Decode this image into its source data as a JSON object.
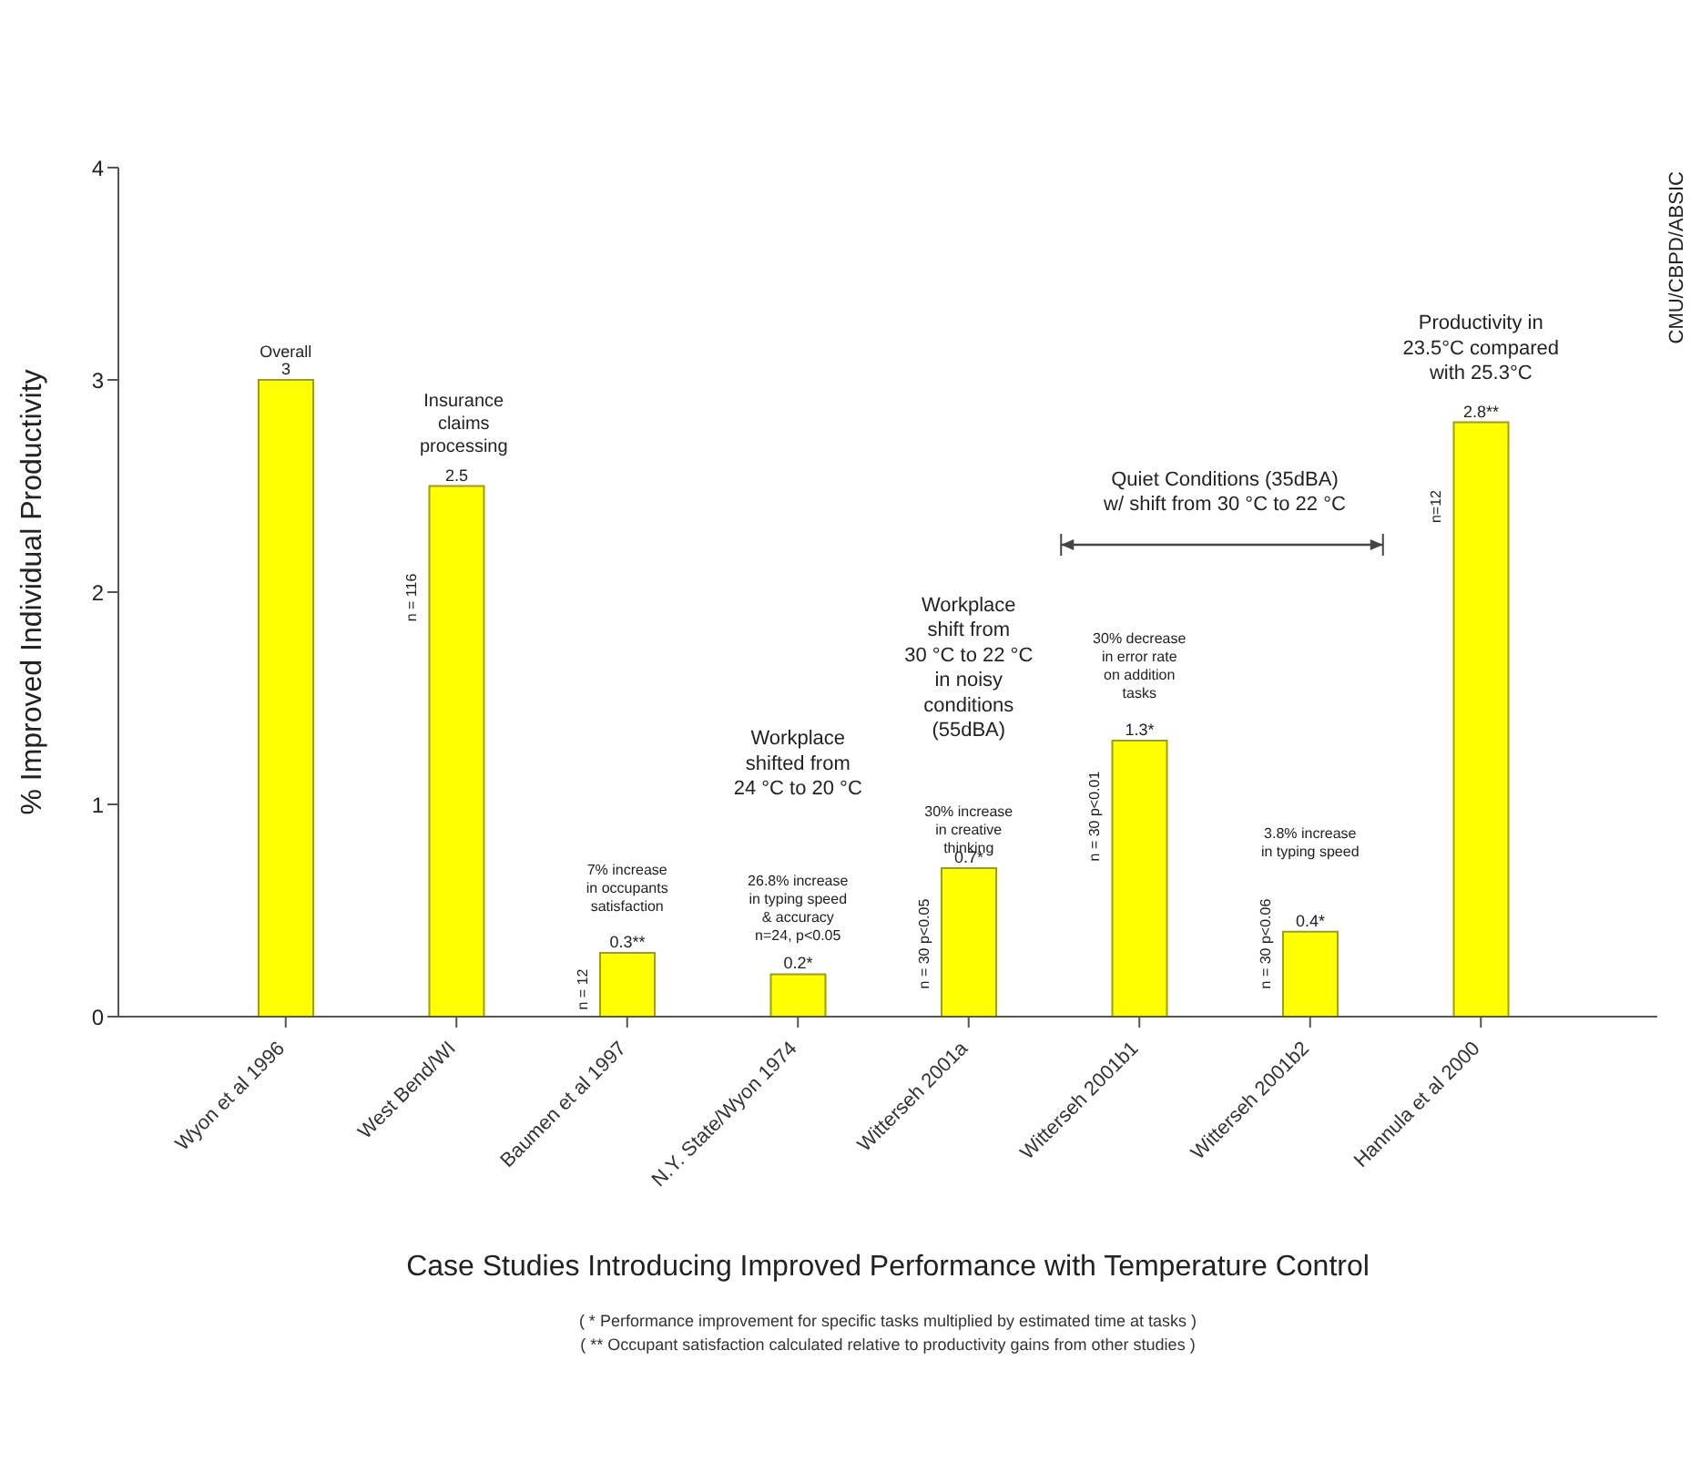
{
  "chart_data": {
    "type": "bar",
    "xlabel": "Case Studies Introducing Improved Performance with Temperature Control",
    "ylabel": "% Improved Individual Productivity",
    "categories": [
      "Wyon et al 1996",
      "West Bend/WI",
      "Baumen et al 1997",
      "N.Y. State/Wyon 1974",
      "Witterseh 2001a",
      "Witterseh 2001b1",
      "Witterseh 2001b2",
      "Hannula et al 2000"
    ],
    "values": [
      3,
      2.5,
      0.3,
      0.2,
      0.7,
      1.3,
      0.4,
      2.8
    ],
    "value_labels": [
      "3",
      "2.5",
      "0.3**",
      "0.2*",
      "0.7*",
      "1.3*",
      "0.4*",
      "2.8**"
    ],
    "color": "#ffff00",
    "ylim": [
      0,
      4
    ],
    "yticks": [
      0,
      1,
      2,
      3,
      4
    ],
    "annotations": [
      "Overall",
      "Insurance\nclaims\nprocessing",
      "n = 116",
      "7% increase\nin occupants\nsatisfaction",
      "n = 12",
      "Workplace\nshifted from\n24 °C to 20 °C",
      "26.8% increase\nin typing speed\n& accuracy\nn=24, p<0.05",
      "Workplace\nshift from\n30 °C to 22 °C\nin noisy\nconditions\n(55dBA)",
      "30% increase\nin creative\nthinking",
      "n = 30  p<0.05",
      "30% decrease\nin error rate\non addition\ntasks",
      "n = 30  p<0.01",
      "3.8% increase\nin typing speed",
      "n = 30  p<0.06",
      "Productivity in\n23.5°C compared\nwith 25.3°C",
      "n=12",
      "Quiet Conditions (35dBA)\nw/ shift from 30 °C to 22 °C",
      "CMU/CBPD/ABSIC",
      "( * Performance improvement for specific tasks multiplied by estimated time at tasks )",
      "( ** Occupant  satisfaction calculated relative to productivity gains from other studies )"
    ]
  }
}
